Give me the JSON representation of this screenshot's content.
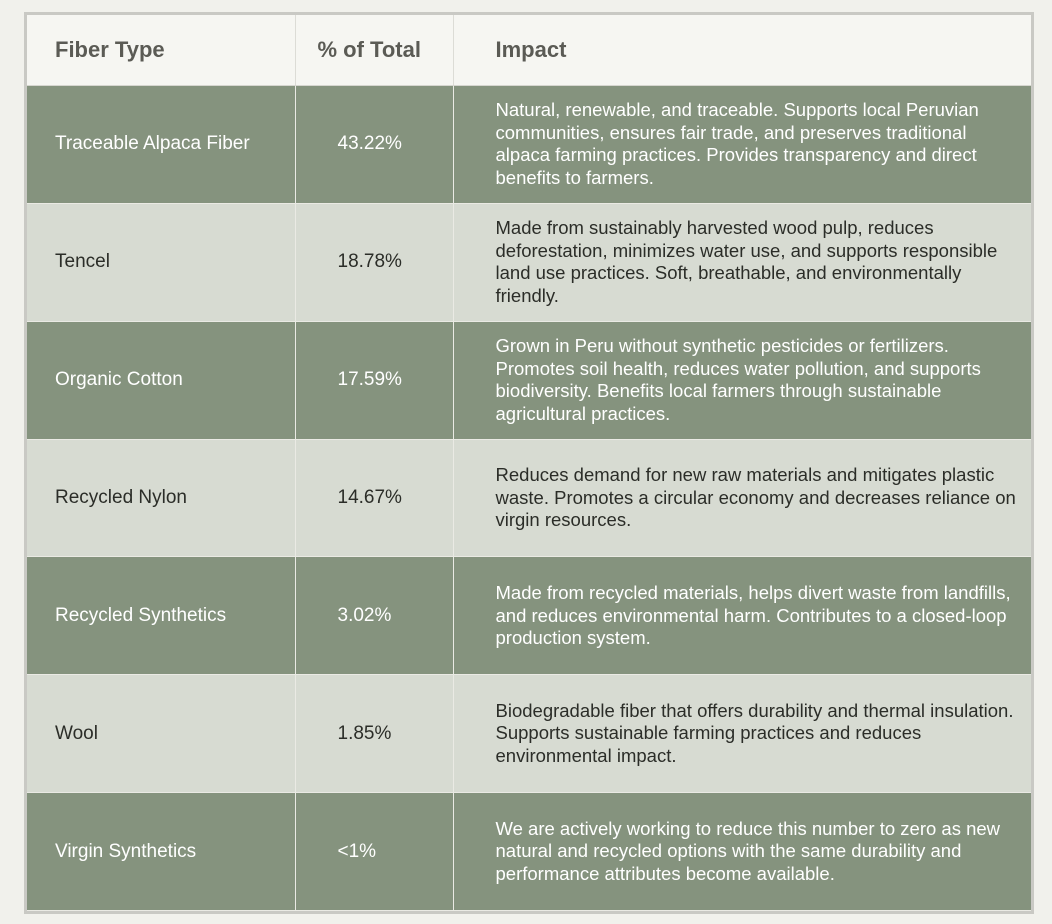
{
  "table": {
    "headers": [
      "Fiber Type",
      "% of Total",
      "Impact"
    ],
    "rows": [
      {
        "fiber": "Traceable Alpaca Fiber",
        "percent": "43.22%",
        "impact": "Natural, renewable, and traceable. Supports local Peruvian communities, ensures fair trade, and preserves traditional alpaca farming practices. Provides transparency and direct benefits to farmers."
      },
      {
        "fiber": "Tencel",
        "percent": "18.78%",
        "impact": "Made from sustainably harvested wood pulp, reduces deforestation, minimizes water use, and supports responsible land use practices. Soft, breathable, and environmentally friendly."
      },
      {
        "fiber": "Organic Cotton",
        "percent": "17.59%",
        "impact": "Grown in Peru without synthetic pesticides or fertilizers. Promotes soil health, reduces water pollution, and supports biodiversity. Benefits local farmers through sustainable agricultural practices."
      },
      {
        "fiber": "Recycled Nylon",
        "percent": "14.67%",
        "impact": "Reduces demand for new raw materials and mitigates plastic waste. Promotes a circular economy and decreases reliance on virgin resources."
      },
      {
        "fiber": "Recycled Synthetics",
        "percent": "3.02%",
        "impact": "Made from recycled materials, helps divert waste from landfills, and reduces environmental harm. Contributes to a closed-loop production system."
      },
      {
        "fiber": "Wool",
        "percent": "1.85%",
        "impact": "Biodegradable fiber that offers durability and thermal insulation. Supports sustainable farming practices and reduces environmental impact."
      },
      {
        "fiber": "Virgin Synthetics",
        "percent": "<1%",
        "impact": "We are actively working to reduce this number to zero as new natural and recycled options with the same durability and performance attributes become available."
      }
    ]
  },
  "colors": {
    "dark_row": "#85937e",
    "light_row": "#d7dbd2",
    "header_bg": "#f6f6f2"
  }
}
